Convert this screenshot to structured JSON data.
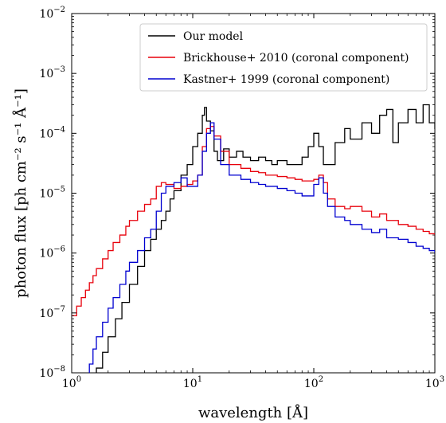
{
  "chart_data": {
    "type": "line",
    "title": "",
    "xlabel": "wavelength [Å]",
    "ylabel": "photon flux [ph cm⁻² s⁻¹ Å⁻¹]",
    "xscale": "log",
    "yscale": "log",
    "xlim": [
      1,
      1000
    ],
    "ylim": [
      1e-08,
      0.01
    ],
    "grid": false,
    "legend": "top-right",
    "x_ticks": [
      {
        "base": "10",
        "exp": "0",
        "value": 1
      },
      {
        "base": "10",
        "exp": "1",
        "value": 10
      },
      {
        "base": "10",
        "exp": "2",
        "value": 100
      },
      {
        "base": "10",
        "exp": "3",
        "value": 1000
      }
    ],
    "y_ticks": [
      {
        "base": "10",
        "exp": "−8",
        "value": 1e-08
      },
      {
        "base": "10",
        "exp": "−7",
        "value": 1e-07
      },
      {
        "base": "10",
        "exp": "−6",
        "value": 1e-06
      },
      {
        "base": "10",
        "exp": "−5",
        "value": 1e-05
      },
      {
        "base": "10",
        "exp": "−4",
        "value": 0.0001
      },
      {
        "base": "10",
        "exp": "−3",
        "value": 0.001
      },
      {
        "base": "10",
        "exp": "−2",
        "value": 0.01
      }
    ],
    "series": [
      {
        "name": "Our model",
        "color": "#000000",
        "x": [
          1.4,
          1.6,
          1.8,
          2.0,
          2.3,
          2.6,
          3.0,
          3.5,
          4.0,
          4.5,
          5.0,
          5.5,
          6.0,
          6.5,
          7.0,
          8.0,
          9.0,
          10.0,
          11.0,
          12.0,
          12.5,
          13.0,
          14.0,
          15.0,
          16.0,
          18.0,
          20.0,
          23.0,
          26.0,
          30.0,
          35.0,
          40.0,
          45.0,
          50.0,
          60.0,
          70.0,
          80.0,
          90.0,
          100.0,
          110.0,
          120.0,
          130.0,
          150.0,
          180.0,
          200.0,
          250.0,
          300.0,
          350.0,
          400.0,
          450.0,
          500.0,
          600.0,
          700.0,
          800.0,
          900.0,
          1000.0
        ],
        "y": [
          7e-09,
          1.2e-08,
          2.2e-08,
          4e-08,
          8e-08,
          1.5e-07,
          3e-07,
          6e-07,
          1.1e-06,
          1.7e-06,
          2.5e-06,
          3.5e-06,
          5e-06,
          8e-06,
          1.1e-05,
          2e-05,
          3e-05,
          6e-05,
          0.0001,
          0.0002,
          0.00027,
          0.00016,
          0.00011,
          5e-05,
          3.5e-05,
          5.5e-05,
          4e-05,
          5e-05,
          4e-05,
          3.5e-05,
          4e-05,
          3.5e-05,
          3e-05,
          3.5e-05,
          3e-05,
          3e-05,
          4e-05,
          6e-05,
          0.0001,
          6e-05,
          3e-05,
          3e-05,
          7e-05,
          0.00012,
          8e-05,
          0.00015,
          0.0001,
          0.0002,
          0.00025,
          7e-05,
          0.00015,
          0.00025,
          0.00015,
          0.0003,
          0.00015,
          0.00012
        ]
      },
      {
        "name": "Brickhouse+ 2010 (coronal component)",
        "color": "#e8000b",
        "x": [
          1.0,
          1.1,
          1.2,
          1.3,
          1.4,
          1.5,
          1.6,
          1.8,
          2.0,
          2.2,
          2.5,
          2.8,
          3.0,
          3.5,
          4.0,
          4.5,
          5.0,
          5.5,
          6.0,
          7.0,
          8.0,
          9.0,
          10.0,
          11.0,
          12.0,
          13.0,
          14.0,
          15.0,
          17.0,
          20.0,
          25.0,
          30.0,
          35.0,
          40.0,
          50.0,
          60.0,
          70.0,
          80.0,
          90.0,
          100.0,
          110.0,
          120.0,
          130.0,
          150.0,
          180.0,
          200.0,
          250.0,
          300.0,
          350.0,
          400.0,
          500.0,
          600.0,
          700.0,
          800.0,
          900.0,
          1000.0
        ],
        "y": [
          9e-08,
          1.3e-07,
          1.8e-07,
          2.4e-07,
          3.2e-07,
          4.2e-07,
          5.5e-07,
          8e-07,
          1.1e-06,
          1.5e-06,
          2e-06,
          2.8e-06,
          3.5e-06,
          5e-06,
          6.5e-06,
          8e-06,
          1.3e-05,
          1.5e-05,
          1.4e-05,
          1.2e-05,
          1.3e-05,
          1.4e-05,
          1.6e-05,
          2e-05,
          6e-05,
          0.00012,
          0.00013,
          9e-05,
          5e-05,
          3e-05,
          2.6e-05,
          2.3e-05,
          2.2e-05,
          2e-05,
          1.9e-05,
          1.8e-05,
          1.7e-05,
          1.6e-05,
          1.6e-05,
          1.7e-05,
          2e-05,
          1.5e-05,
          8e-06,
          6e-06,
          5.5e-06,
          6e-06,
          5e-06,
          4e-06,
          4.5e-06,
          3.5e-06,
          3e-06,
          2.8e-06,
          2.5e-06,
          2.3e-06,
          2.1e-06,
          2e-06
        ]
      },
      {
        "name": "Kastner+ 1999 (coronal component)",
        "color": "#0000d0",
        "x": [
          1.3,
          1.4,
          1.5,
          1.6,
          1.8,
          2.0,
          2.2,
          2.5,
          2.8,
          3.0,
          3.5,
          4.0,
          4.5,
          5.0,
          5.5,
          6.0,
          7.0,
          8.0,
          9.0,
          10.0,
          11.0,
          12.0,
          13.0,
          14.0,
          15.0,
          17.0,
          20.0,
          25.0,
          30.0,
          35.0,
          40.0,
          50.0,
          60.0,
          70.0,
          80.0,
          90.0,
          100.0,
          110.0,
          120.0,
          130.0,
          150.0,
          180.0,
          200.0,
          250.0,
          300.0,
          350.0,
          400.0,
          500.0,
          600.0,
          700.0,
          800.0,
          900.0,
          1000.0
        ],
        "y": [
          8e-09,
          1.4e-08,
          2.5e-08,
          4e-08,
          7e-08,
          1.2e-07,
          1.8e-07,
          3e-07,
          5e-07,
          7e-07,
          1.1e-06,
          1.8e-06,
          2.5e-06,
          5e-06,
          1e-05,
          1.3e-05,
          1.5e-05,
          1.8e-05,
          1.3e-05,
          1.3e-05,
          2e-05,
          5e-05,
          0.0001,
          0.00015,
          8e-05,
          3e-05,
          2e-05,
          1.7e-05,
          1.5e-05,
          1.4e-05,
          1.3e-05,
          1.2e-05,
          1.1e-05,
          1e-05,
          9e-06,
          9e-06,
          1.4e-05,
          1.8e-05,
          1e-05,
          6e-06,
          4e-06,
          3.5e-06,
          3e-06,
          2.5e-06,
          2.2e-06,
          2.5e-06,
          1.8e-06,
          1.7e-06,
          1.5e-06,
          1.3e-06,
          1.2e-06,
          1.1e-06,
          1e-06
        ]
      }
    ]
  }
}
